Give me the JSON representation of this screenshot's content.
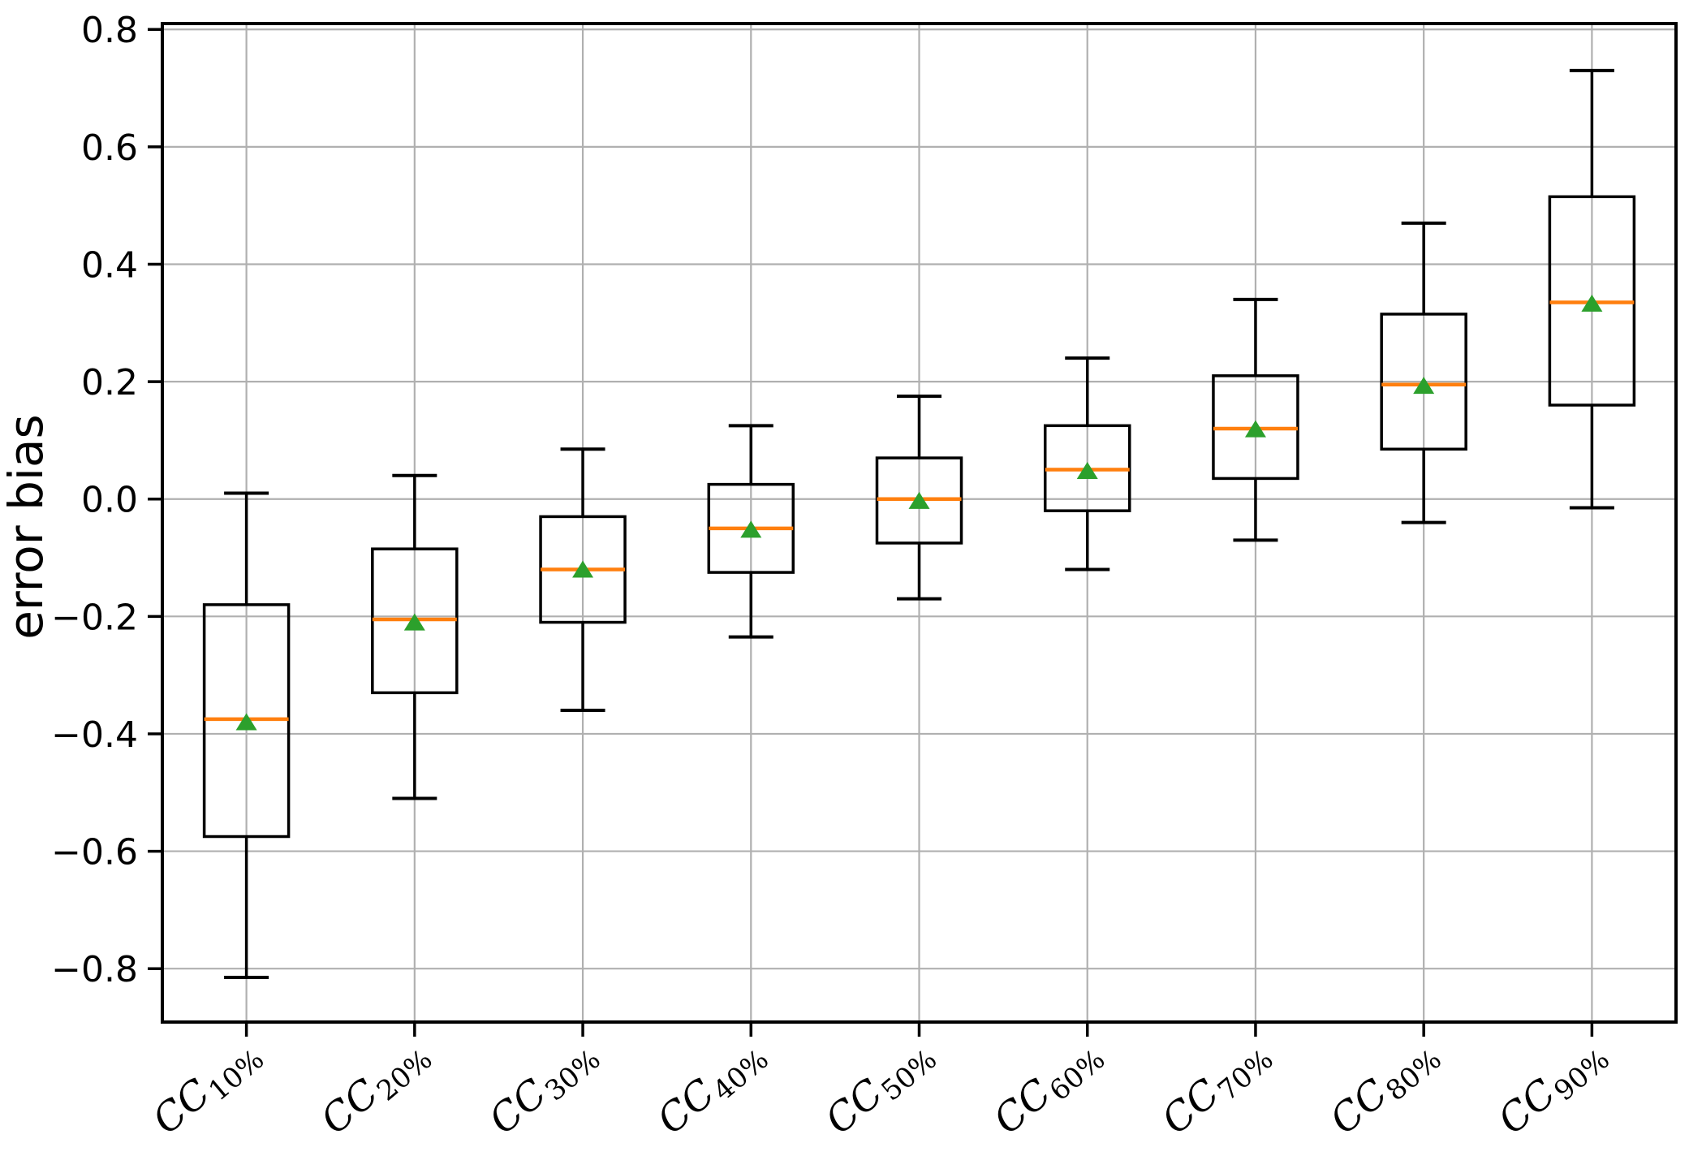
{
  "chart_data": {
    "type": "box",
    "title": "",
    "ylabel": "error bias",
    "xlabel": "",
    "ylim": [
      -0.891,
      0.81
    ],
    "yticks": [
      0.8,
      0.6,
      0.4,
      0.2,
      0.0,
      -0.2,
      -0.4,
      -0.6,
      -0.8
    ],
    "grid": true,
    "legend": null,
    "colors": {
      "median_line": "#ff7f0e",
      "mean_marker": "#2ca02c",
      "box_line": "#000000",
      "grid_line": "#b0b0b0",
      "tick_text": "#000000"
    },
    "categories": [
      {
        "label_main": "CC",
        "label_sub": "10%"
      },
      {
        "label_main": "CC",
        "label_sub": "20%"
      },
      {
        "label_main": "CC",
        "label_sub": "30%"
      },
      {
        "label_main": "CC",
        "label_sub": "40%"
      },
      {
        "label_main": "CC",
        "label_sub": "50%"
      },
      {
        "label_main": "CC",
        "label_sub": "60%"
      },
      {
        "label_main": "CC",
        "label_sub": "70%"
      },
      {
        "label_main": "CC",
        "label_sub": "80%"
      },
      {
        "label_main": "CC",
        "label_sub": "90%"
      }
    ],
    "boxes": [
      {
        "whislo": -0.815,
        "q1": -0.575,
        "med": -0.375,
        "q3": -0.18,
        "whishi": 0.01,
        "mean": -0.38
      },
      {
        "whislo": -0.51,
        "q1": -0.33,
        "med": -0.205,
        "q3": -0.085,
        "whishi": 0.04,
        "mean": -0.21
      },
      {
        "whislo": -0.36,
        "q1": -0.21,
        "med": -0.12,
        "q3": -0.03,
        "whishi": 0.085,
        "mean": -0.12
      },
      {
        "whislo": -0.235,
        "q1": -0.125,
        "med": -0.05,
        "q3": 0.025,
        "whishi": 0.125,
        "mean": -0.052
      },
      {
        "whislo": -0.17,
        "q1": -0.075,
        "med": 0.0,
        "q3": 0.07,
        "whishi": 0.175,
        "mean": -0.003
      },
      {
        "whislo": -0.12,
        "q1": -0.02,
        "med": 0.05,
        "q3": 0.125,
        "whishi": 0.24,
        "mean": 0.048
      },
      {
        "whislo": -0.07,
        "q1": 0.035,
        "med": 0.12,
        "q3": 0.21,
        "whishi": 0.34,
        "mean": 0.119
      },
      {
        "whislo": -0.04,
        "q1": 0.085,
        "med": 0.195,
        "q3": 0.315,
        "whishi": 0.47,
        "mean": 0.193
      },
      {
        "whislo": -0.015,
        "q1": 0.16,
        "med": 0.335,
        "q3": 0.515,
        "whishi": 0.73,
        "mean": 0.333
      }
    ]
  },
  "layout_note": "box plot, means shown as triangles, medians orange"
}
